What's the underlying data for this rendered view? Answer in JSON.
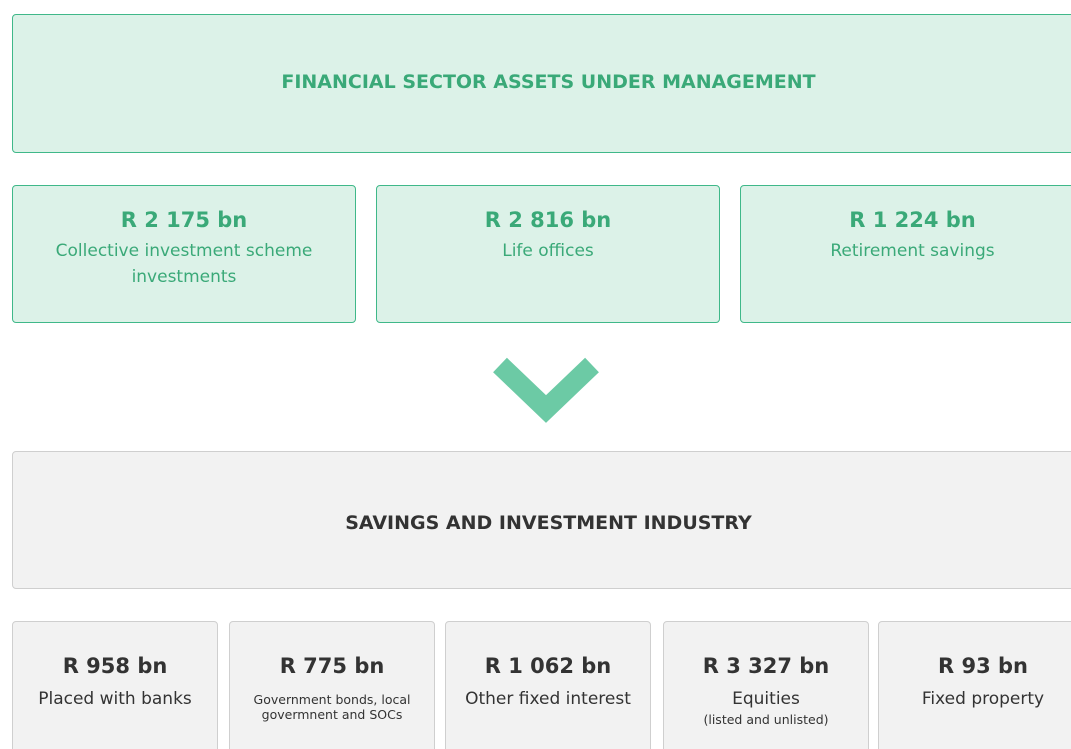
{
  "header": {
    "title": "FINANCIAL SECTOR ASSETS UNDER MANAGEMENT"
  },
  "sources": [
    {
      "value": "R 2 175 bn",
      "label": "Collective investment scheme investments"
    },
    {
      "value": "R 2 816 bn",
      "label": "Life offices"
    },
    {
      "value": "R 1 224 bn",
      "label": "Retirement savings"
    }
  ],
  "industry": {
    "title": "SAVINGS AND INVESTMENT INDUSTRY"
  },
  "allocations": [
    {
      "value": "R 958 bn",
      "label": "Placed with banks"
    },
    {
      "value": "R 775 bn",
      "label": "Government bonds, local govermnent and SOCs"
    },
    {
      "value": "R 1 062 bn",
      "label": "Other fixed interest"
    },
    {
      "value": "R 3 327 bn",
      "label": "Equities",
      "note": "(listed and unlisted)"
    },
    {
      "value": "R 93 bn",
      "label": "Fixed property"
    }
  ]
}
